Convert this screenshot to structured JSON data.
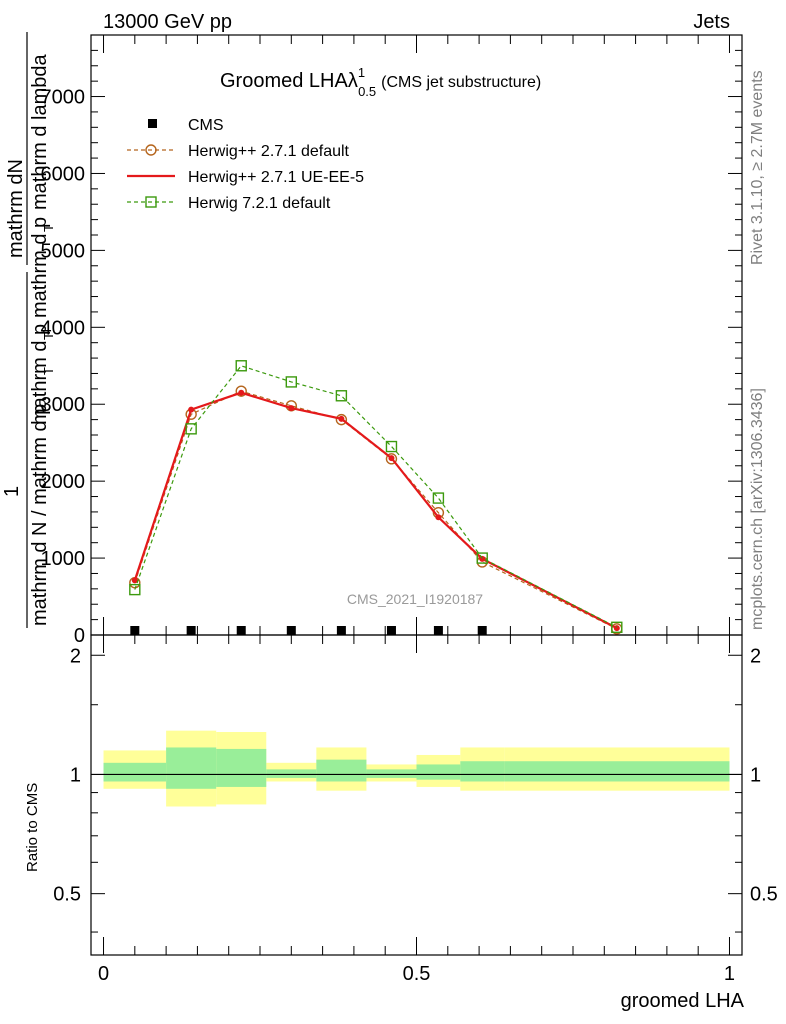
{
  "header": {
    "left": "13000 GeV pp",
    "right": "Jets"
  },
  "side_labels": {
    "rivet": "Rivet 3.1.10, ≥ 2.7M events",
    "mcplots": "mcplots.cern.ch [arXiv:1306.3436]"
  },
  "chart_data": [
    {
      "type": "line",
      "title": "Groomed LHAλ",
      "title_sup": "1",
      "title_sub": "0.5",
      "title_extra": "(CMS jet substructure)",
      "watermark": "CMS_2021_I1920187",
      "xlabel": "groomed LHA",
      "ylabel_top": "mathrm dN",
      "ylabel_mid_1": "mathrm d p",
      "ylabel_mid_1_sub": "T",
      "ylabel_mid_2": "mathrm d p",
      "ylabel_mid_2_sub": "T",
      "ylabel_mid_3": "mathrm d lambda",
      "ylabel_one": "1",
      "ylabel_bottom": "mathrm d N / mathrm d p",
      "ylabel_bottom_sub": "T",
      "xlim": [
        -0.02,
        1.02
      ],
      "ylim": [
        0,
        7800
      ],
      "yticks": [
        0,
        1000,
        2000,
        3000,
        4000,
        5000,
        6000,
        7000
      ],
      "ytick_labels": [
        "0",
        "1000",
        "2000",
        "3000",
        "4000",
        "5000",
        "6000",
        "7000"
      ],
      "legend_position": "top-left",
      "series": [
        {
          "name": "CMS",
          "style": "markers",
          "color": "#000000",
          "x": [
            0.05,
            0.14,
            0.22,
            0.3,
            0.38,
            0.46,
            0.535,
            0.605
          ],
          "y": [
            0,
            0,
            0,
            0,
            0,
            0,
            0,
            0
          ]
        },
        {
          "name": "Herwig++ 2.7.1 default",
          "style": "dashed-circle",
          "color": "#b5651d",
          "x": [
            0.05,
            0.14,
            0.22,
            0.3,
            0.38,
            0.46,
            0.535,
            0.605,
            0.82
          ],
          "y": [
            680,
            2870,
            3170,
            2980,
            2800,
            2290,
            1590,
            950,
            80
          ]
        },
        {
          "name": "Herwig++ 2.7.1 UE-EE-5",
          "style": "solid",
          "color": "#e4191b",
          "x": [
            0.05,
            0.14,
            0.22,
            0.3,
            0.38,
            0.46,
            0.535,
            0.605,
            0.82
          ],
          "y": [
            710,
            2930,
            3150,
            2950,
            2810,
            2300,
            1530,
            990,
            90
          ]
        },
        {
          "name": "Herwig 7.2.1 default",
          "style": "dashed-square",
          "color": "#3c9a0e",
          "x": [
            0.05,
            0.14,
            0.22,
            0.3,
            0.38,
            0.46,
            0.535,
            0.605,
            0.82
          ],
          "y": [
            590,
            2680,
            3500,
            3290,
            3110,
            2450,
            1780,
            1000,
            100
          ]
        }
      ]
    },
    {
      "type": "area",
      "ylabel": "Ratio to CMS",
      "xlabel": "groomed LHA",
      "xlim": [
        -0.02,
        1.02
      ],
      "ylim": [
        0.35,
        2.25
      ],
      "yticks": [
        0.5,
        1,
        2
      ],
      "ytick_labels": [
        "0.5",
        "1",
        "2"
      ],
      "xticks": [
        0,
        0.5,
        1
      ],
      "xtick_labels": [
        "0",
        "0.5",
        "1"
      ],
      "reference_line": 1,
      "bin_edges": [
        0,
        0.1,
        0.18,
        0.26,
        0.34,
        0.42,
        0.5,
        0.57,
        0.64,
        1.0
      ],
      "band_outer": {
        "color": "#ffff99",
        "lo": [
          0.92,
          0.83,
          0.84,
          0.96,
          0.91,
          0.96,
          0.93,
          0.91,
          0.91
        ],
        "hi": [
          1.15,
          1.29,
          1.28,
          1.07,
          1.17,
          1.06,
          1.12,
          1.17,
          1.17
        ]
      },
      "band_inner": {
        "color": "#99ee99",
        "lo": [
          0.96,
          0.92,
          0.93,
          0.98,
          0.96,
          0.98,
          0.97,
          0.96,
          0.96
        ],
        "hi": [
          1.07,
          1.17,
          1.16,
          1.03,
          1.09,
          1.03,
          1.06,
          1.08,
          1.08
        ]
      }
    }
  ]
}
